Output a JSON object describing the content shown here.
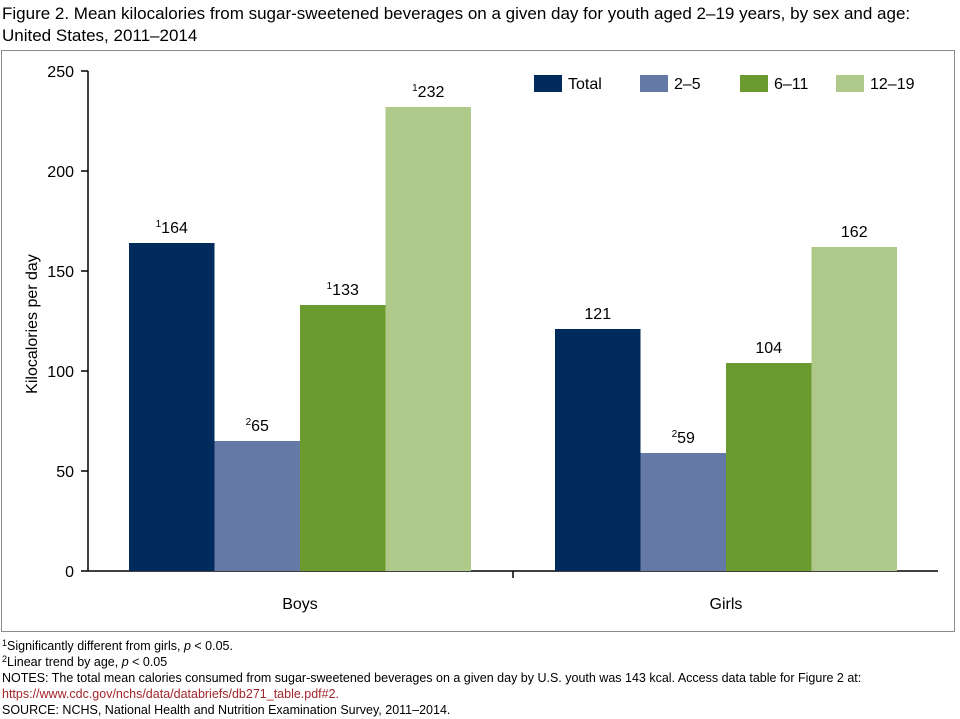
{
  "title_line1": "Figure 2. Mean kilocalories from sugar-sweetened beverages on a given day for youth aged 2–19 years, by sex and age:",
  "title_line2": "United States, 2011–2014",
  "chart_data": {
    "type": "bar",
    "categories": [
      "Boys",
      "Girls"
    ],
    "series": [
      {
        "name": "Total",
        "values": [
          164,
          121
        ],
        "color": "#002b5c",
        "labels": [
          "¹164",
          "121"
        ]
      },
      {
        "name": "2–5",
        "values": [
          65,
          59
        ],
        "color": "#6579a6",
        "labels": [
          "²65",
          "²59"
        ]
      },
      {
        "name": "6–11",
        "values": [
          133,
          104
        ],
        "color": "#6b9a2f",
        "labels": [
          "¹133",
          "104"
        ]
      },
      {
        "name": "12–19",
        "values": [
          232,
          162
        ],
        "color": "#aec98a",
        "labels": [
          "¹232",
          "162"
        ]
      }
    ],
    "ylabel": "Kilocalories per day",
    "xlabel": "",
    "ylim": [
      0,
      250
    ],
    "yticks": [
      0,
      50,
      100,
      150,
      200,
      250
    ],
    "legend_position": "top-right",
    "grid": false
  },
  "footnotes": {
    "note1_sup": "1",
    "note1_text": "Significantly different from girls, ",
    "note1_p": "p",
    "note1_rest": " < 0.05.",
    "note2_sup": "2",
    "note2_text": "Linear trend by age, ",
    "note2_p": "p",
    "note2_rest": " < 0.05",
    "notes_text": "NOTES: The total mean calories consumed from sugar-sweetened beverages on a given day by U.S. youth was 143 kcal. Access data table for Figure 2 at:",
    "notes_link": "https://www.cdc.gov/nchs/data/databriefs/db271_table.pdf#2.",
    "source": "SOURCE: NCHS, National Health and Nutrition Examination Survey, 2011–2014."
  }
}
